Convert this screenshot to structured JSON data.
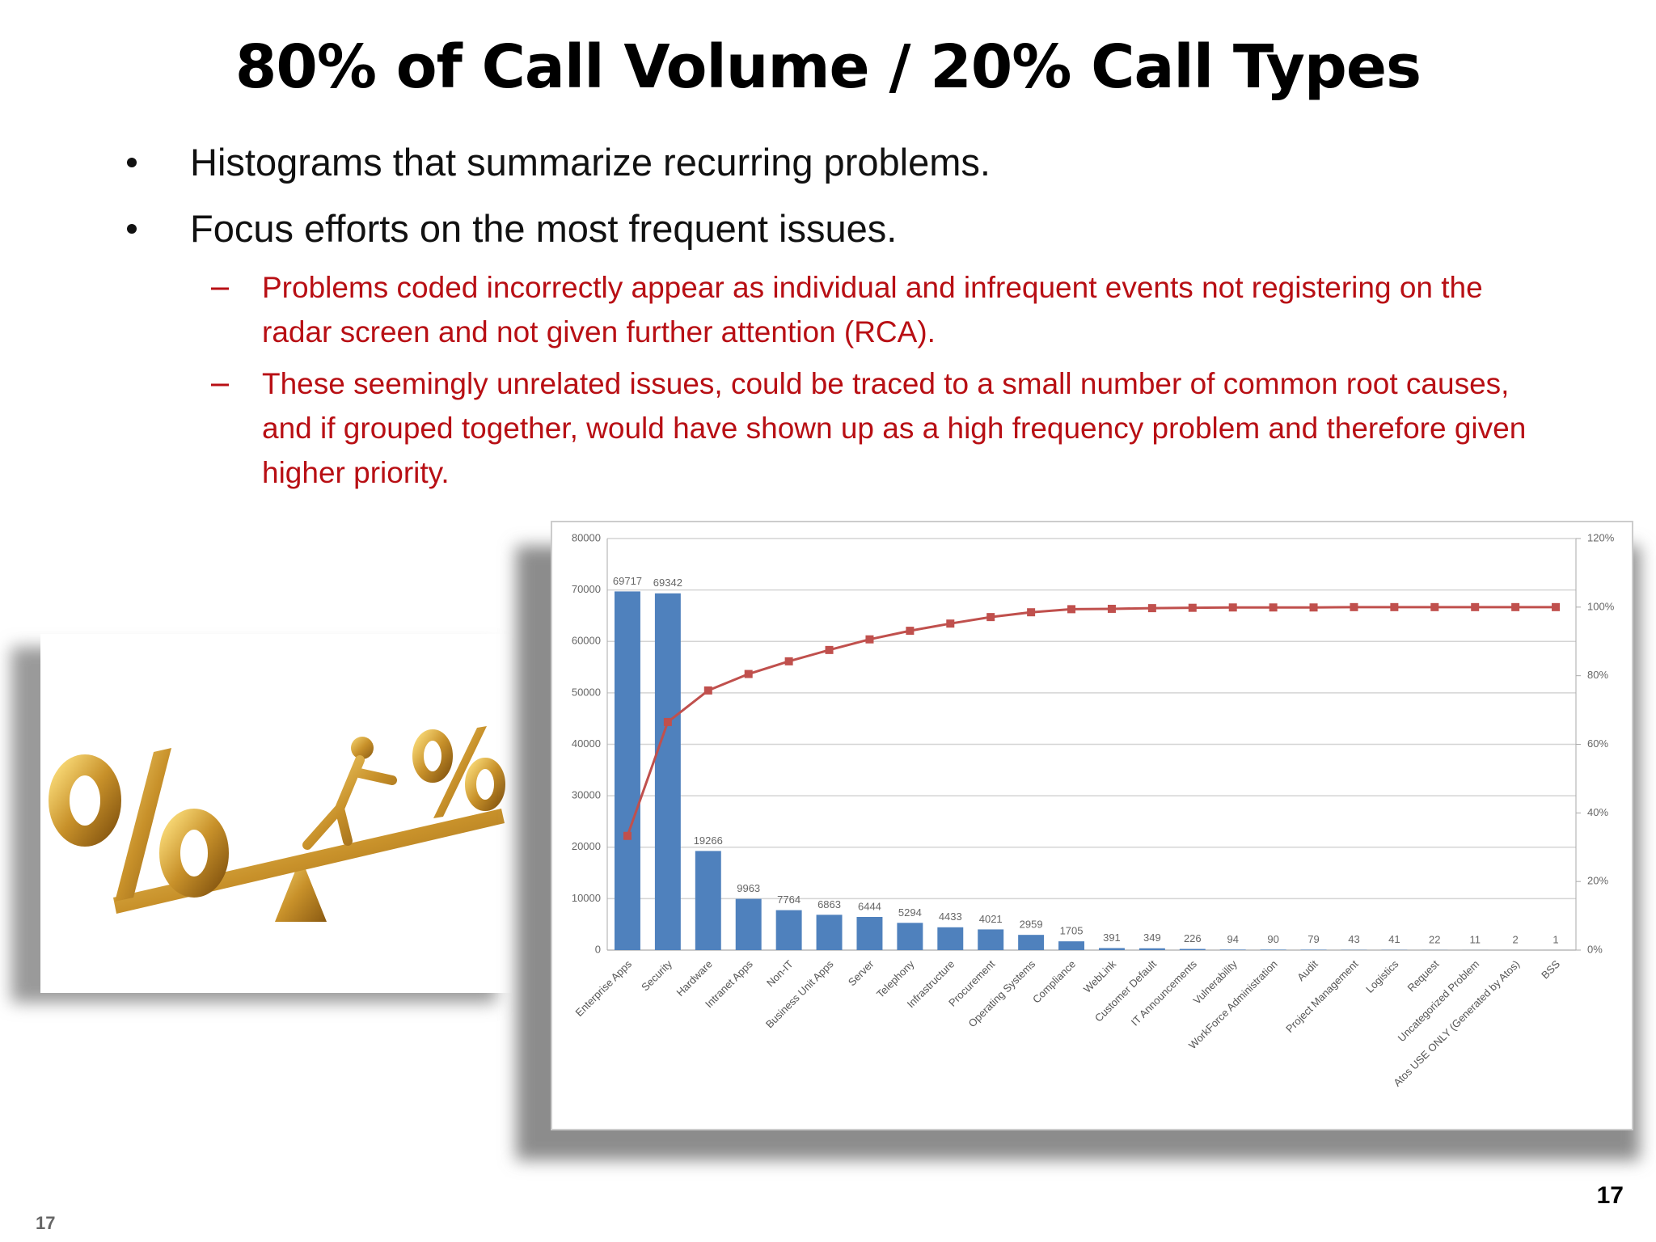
{
  "title": "80% of Call Volume / 20% Call Types",
  "bullets": [
    "Histograms that summarize recurring problems.",
    "Focus efforts on the most frequent issues."
  ],
  "sub_bullets": [
    "Problems coded incorrectly appear as individual and infrequent events not registering on the radar screen and not given further attention (RCA).",
    "These seemingly unrelated issues, could be traced to a small number of common root causes, and if grouped together, would have shown up as a high frequency problem and therefore given higher priority."
  ],
  "slide_number": "17",
  "footer_number": "17",
  "chart_data": {
    "type": "bar",
    "categories": [
      "Enterprise Apps",
      "Security",
      "Hardware",
      "Intranet Apps",
      "Non-IT",
      "Business Unit Apps",
      "Server",
      "Telephony",
      "Infrastructure",
      "Procurement",
      "Operating Systems",
      "Compliance",
      "WebLink",
      "Customer Default",
      "IT Announcements",
      "Vulnerability",
      "WorkForce Administration",
      "Audit",
      "Project Management",
      "Logistics",
      "Request",
      "Uncategorized Problem",
      "Atos USE ONLY (Generated by Atos)",
      "BSS"
    ],
    "series": [
      {
        "type": "bar",
        "color": "#4f81bd",
        "values": [
          69717,
          69342,
          19266,
          9963,
          7764,
          6863,
          6444,
          5294,
          4433,
          4021,
          2959,
          1705,
          391,
          349,
          226,
          94,
          90,
          79,
          43,
          41,
          22,
          11,
          2,
          1
        ]
      },
      {
        "type": "line",
        "axis": "y2",
        "color": "#c0504d",
        "values": [
          33.3,
          66.5,
          75.7,
          80.5,
          84.2,
          87.5,
          90.6,
          93.1,
          95.2,
          97.1,
          98.5,
          99.4,
          99.5,
          99.7,
          99.8,
          99.9,
          99.9,
          99.9,
          100,
          100,
          100,
          100,
          100,
          100
        ]
      }
    ],
    "ylim": [
      0,
      80000
    ],
    "yticks": [
      0,
      10000,
      20000,
      30000,
      40000,
      50000,
      60000,
      70000,
      80000
    ],
    "y2lim": [
      0,
      120
    ],
    "y2ticks": [
      {
        "value": 0,
        "label": "0%"
      },
      {
        "value": 20,
        "label": "20%"
      },
      {
        "value": 40,
        "label": "40%"
      },
      {
        "value": 60,
        "label": "60%"
      },
      {
        "value": 80,
        "label": "80%"
      },
      {
        "value": 100,
        "label": "100%"
      },
      {
        "value": 120,
        "label": "120%"
      }
    ],
    "grid": true
  }
}
